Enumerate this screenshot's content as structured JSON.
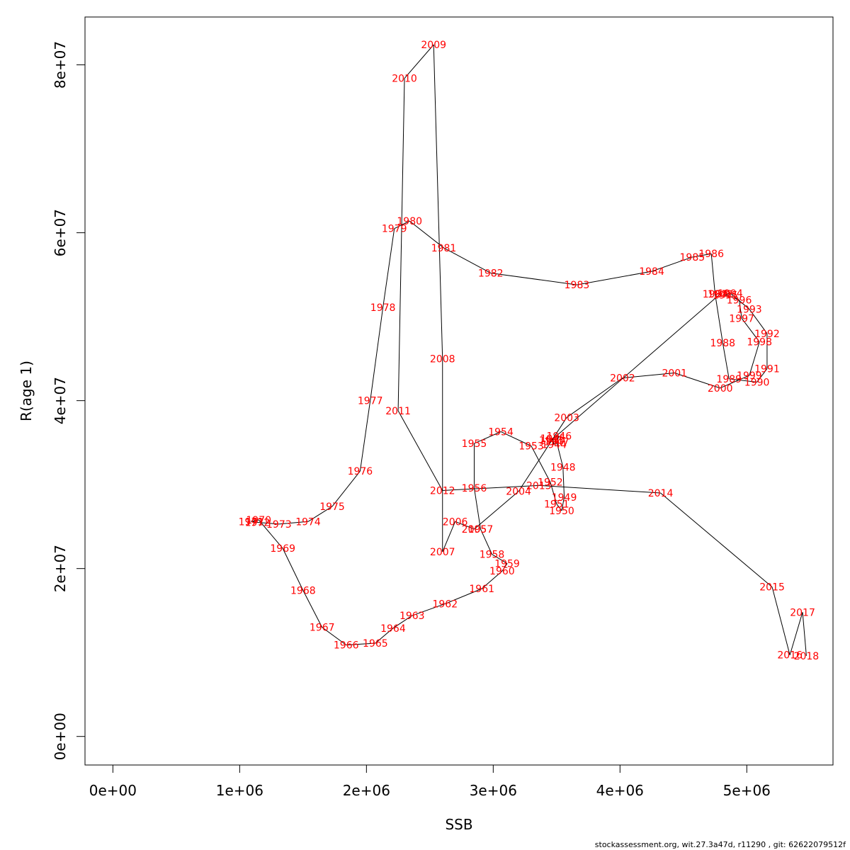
{
  "chart_data": {
    "type": "line",
    "title": "",
    "xlabel": "SSB",
    "ylabel": "R(age 1)",
    "xlim": [
      -220000,
      5680000
    ],
    "ylim": [
      -3400000,
      85700000
    ],
    "xticks": [
      "0e+00",
      "1e+06",
      "2e+06",
      "3e+06",
      "4e+06",
      "5e+06"
    ],
    "xtick_values": [
      0,
      1000000,
      2000000,
      3000000,
      4000000,
      5000000
    ],
    "yticks": [
      "0e+00",
      "2e+07",
      "4e+07",
      "6e+07",
      "8e+07"
    ],
    "ytick_values": [
      0,
      20000000,
      40000000,
      60000000,
      80000000
    ],
    "grid": false,
    "line_color": "#000000",
    "label_color": "#ff0000",
    "series": [
      {
        "points": [
          {
            "label": "1942",
            "x": 4790000,
            "y": 52700000
          },
          {
            "label": "1943",
            "x": 3460000,
            "y": 35300000
          },
          {
            "label": "1944",
            "x": 3480000,
            "y": 34800000
          },
          {
            "label": "1945",
            "x": 3470000,
            "y": 35500000
          },
          {
            "label": "1946",
            "x": 3520000,
            "y": 35800000
          },
          {
            "label": "1947",
            "x": 3500000,
            "y": 35100000
          },
          {
            "label": "1948",
            "x": 3550000,
            "y": 32100000
          },
          {
            "label": "1949",
            "x": 3560000,
            "y": 28500000
          },
          {
            "label": "1950",
            "x": 3540000,
            "y": 26900000
          },
          {
            "label": "1951",
            "x": 3500000,
            "y": 27700000
          },
          {
            "label": "1952",
            "x": 3450000,
            "y": 30300000
          },
          {
            "label": "1953",
            "x": 3300000,
            "y": 34600000
          },
          {
            "label": "1954",
            "x": 3060000,
            "y": 36300000
          },
          {
            "label": "1955",
            "x": 2850000,
            "y": 34900000
          },
          {
            "label": "1956",
            "x": 2850000,
            "y": 29600000
          },
          {
            "label": "1957",
            "x": 2900000,
            "y": 24700000
          },
          {
            "label": "1958",
            "x": 2990000,
            "y": 21700000
          },
          {
            "label": "1959",
            "x": 3110000,
            "y": 20600000
          },
          {
            "label": "1960",
            "x": 3070000,
            "y": 19700000
          },
          {
            "label": "1961",
            "x": 2910000,
            "y": 17600000
          },
          {
            "label": "1962",
            "x": 2620000,
            "y": 15800000
          },
          {
            "label": "1963",
            "x": 2360000,
            "y": 14400000
          },
          {
            "label": "1964",
            "x": 2210000,
            "y": 12900000
          },
          {
            "label": "1965",
            "x": 2070000,
            "y": 11100000
          },
          {
            "label": "1966",
            "x": 1840000,
            "y": 10900000
          },
          {
            "label": "1967",
            "x": 1650000,
            "y": 13000000
          },
          {
            "label": "1968",
            "x": 1500000,
            "y": 17400000
          },
          {
            "label": "1969",
            "x": 1340000,
            "y": 22400000
          },
          {
            "label": "1970",
            "x": 1150000,
            "y": 25800000
          },
          {
            "label": "1971",
            "x": 1090000,
            "y": 25600000
          },
          {
            "label": "1972",
            "x": 1140000,
            "y": 25500000
          },
          {
            "label": "1973",
            "x": 1310000,
            "y": 25300000
          },
          {
            "label": "1974",
            "x": 1540000,
            "y": 25600000
          },
          {
            "label": "1975",
            "x": 1730000,
            "y": 27400000
          },
          {
            "label": "1976",
            "x": 1950000,
            "y": 31600000
          },
          {
            "label": "1977",
            "x": 2030000,
            "y": 40000000
          },
          {
            "label": "1978",
            "x": 2130000,
            "y": 51100000
          },
          {
            "label": "1979",
            "x": 2220000,
            "y": 60500000
          },
          {
            "label": "1980",
            "x": 2340000,
            "y": 61400000
          },
          {
            "label": "1981",
            "x": 2610000,
            "y": 58200000
          },
          {
            "label": "1982",
            "x": 2980000,
            "y": 55200000
          },
          {
            "label": "1983",
            "x": 3660000,
            "y": 53800000
          },
          {
            "label": "1984",
            "x": 4250000,
            "y": 55400000
          },
          {
            "label": "1985",
            "x": 4570000,
            "y": 57100000
          },
          {
            "label": "1986",
            "x": 4720000,
            "y": 57500000
          },
          {
            "label": "1987",
            "x": 4750000,
            "y": 52700000
          },
          {
            "label": "1988",
            "x": 4810000,
            "y": 46900000
          },
          {
            "label": "1989",
            "x": 4860000,
            "y": 42600000
          },
          {
            "label": "1990",
            "x": 5080000,
            "y": 42200000
          },
          {
            "label": "1991",
            "x": 5160000,
            "y": 43800000
          },
          {
            "label": "1992",
            "x": 5160000,
            "y": 48000000
          },
          {
            "label": "1993",
            "x": 5020000,
            "y": 50900000
          },
          {
            "label": "1994",
            "x": 4870000,
            "y": 52800000
          },
          {
            "label": "1995",
            "x": 4830000,
            "y": 52600000
          },
          {
            "label": "1996",
            "x": 4940000,
            "y": 52000000
          },
          {
            "label": "1997",
            "x": 4960000,
            "y": 49800000
          },
          {
            "label": "1998",
            "x": 5100000,
            "y": 47000000
          },
          {
            "label": "1999",
            "x": 5020000,
            "y": 43000000
          },
          {
            "label": "2000",
            "x": 4790000,
            "y": 41500000
          },
          {
            "label": "2001",
            "x": 4430000,
            "y": 43300000
          },
          {
            "label": "2002",
            "x": 4020000,
            "y": 42700000
          },
          {
            "label": "2003",
            "x": 3580000,
            "y": 38000000
          },
          {
            "label": "2004",
            "x": 3200000,
            "y": 29200000
          },
          {
            "label": "2005",
            "x": 2850000,
            "y": 24700000
          },
          {
            "label": "2006",
            "x": 2700000,
            "y": 25600000
          },
          {
            "label": "2007",
            "x": 2600000,
            "y": 22000000
          },
          {
            "label": "2008",
            "x": 2600000,
            "y": 45000000
          },
          {
            "label": "2009",
            "x": 2530000,
            "y": 82400000
          },
          {
            "label": "2010",
            "x": 2300000,
            "y": 78400000
          },
          {
            "label": "2011",
            "x": 2250000,
            "y": 38800000
          },
          {
            "label": "2012",
            "x": 2600000,
            "y": 29300000
          },
          {
            "label": "2013",
            "x": 3360000,
            "y": 29900000
          },
          {
            "label": "2014",
            "x": 4320000,
            "y": 29000000
          },
          {
            "label": "2015",
            "x": 5200000,
            "y": 17800000
          },
          {
            "label": "2016",
            "x": 5340000,
            "y": 9700000
          },
          {
            "label": "2017",
            "x": 5440000,
            "y": 14800000
          },
          {
            "label": "2018",
            "x": 5470000,
            "y": 9600000
          }
        ]
      }
    ]
  },
  "footer": "stockassessment.org, wit.27.3a47d, r11290 , git: 62622079512f"
}
